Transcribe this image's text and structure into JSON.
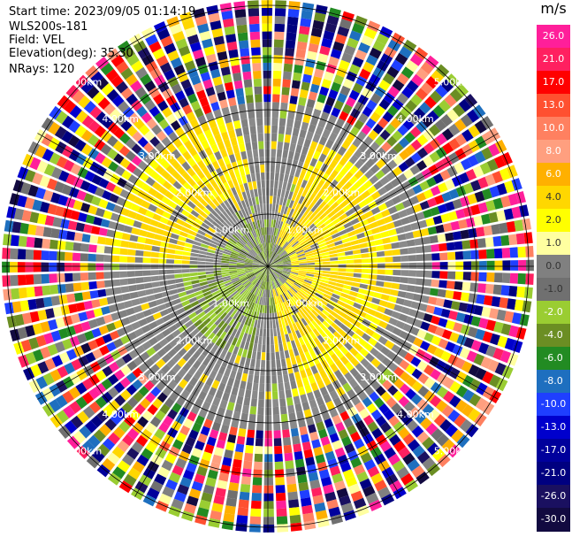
{
  "header": {
    "start_time": "Start time: 2023/09/05 01:14:19",
    "station": "WLS200s-181",
    "field": "Field: VEL",
    "elevation": "Elevation(deg): 35.30",
    "nrays": "NRays: 120"
  },
  "colorbar": {
    "unit": "m/s",
    "labels": [
      "26.0",
      "21.0",
      "17.0",
      "13.0",
      "10.0",
      "8.0",
      "6.0",
      "4.0",
      "2.0",
      "1.0",
      "0.0",
      "-1.0",
      "-2.0",
      "-4.0",
      "-6.0",
      "-8.0",
      "-10.0",
      "-13.0",
      "-17.0",
      "-21.0",
      "-26.0",
      "-30.0"
    ],
    "colors": [
      "#ff1f9a",
      "#ff2060",
      "#ff0000",
      "#ff5030",
      "#ff8060",
      "#ff9f7f",
      "#ffb000",
      "#ffd700",
      "#ffff00",
      "#ffffa0",
      "#808080",
      "#707070",
      "#9acd32",
      "#6b8e23",
      "#228b22",
      "#1e6fbf",
      "#1f3fff",
      "#0000cd",
      "#00009c",
      "#000080",
      "#1a1060",
      "#120a40"
    ]
  },
  "chart_data": {
    "type": "ppi",
    "field": "VEL",
    "unit": "m/s",
    "n_rays": 120,
    "range_rings_km": [
      1.0,
      2.0,
      3.0,
      4.0,
      5.0
    ],
    "range_ring_labels": [
      "1.00km",
      "2.00km",
      "3.00km",
      "4.00km",
      "5.00km"
    ],
    "inner_region": {
      "max_range_km": 3.1,
      "description_classes": [
        "gray near zero",
        "yellow 2.0 to 4.0 (north-west and east sectors)",
        "yellow-green -1.0 to -2.0 (south-west near center)"
      ]
    },
    "outer_region": {
      "min_range_km": 3.1,
      "max_range_km": 5.1,
      "class": "noise (all colors)"
    }
  }
}
